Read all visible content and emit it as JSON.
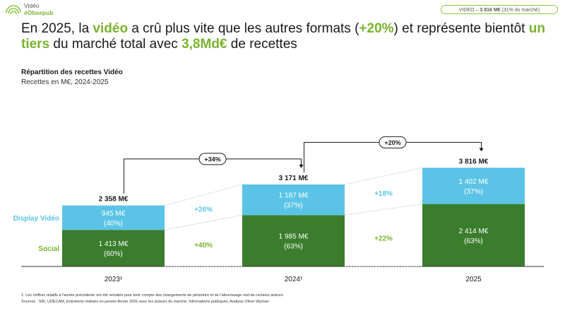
{
  "header": {
    "brand": "Vidéo",
    "hashtag": "#Obsepub",
    "badge_label": "VIDEO –",
    "badge_value": "3 816 M€",
    "badge_note": "(31% du marché)"
  },
  "headline": {
    "p1": "En 2025, la ",
    "h1": "vidéo",
    "p2": " a crû plus vite que les autres formats (",
    "h2": "+20%",
    "p3": ") et représente bientôt ",
    "h3": "un tiers",
    "p4": " du marché total avec ",
    "h4": "3,8Md€",
    "p5": " de recettes"
  },
  "colors": {
    "social": "#3a7d2c",
    "display": "#5bc4e6",
    "accent": "#7ab32e",
    "growth_display": "#5bc4e6",
    "growth_social": "#7ab32e"
  },
  "chart_data": {
    "type": "bar",
    "title": "Répartition des recettes Vidéo",
    "subtitle": "Recettes en M€, 2024-2025",
    "categories": [
      "2023¹",
      "2024¹",
      "2025"
    ],
    "series": [
      {
        "name": "Social",
        "values": [
          1413,
          1985,
          2414
        ],
        "value_labels": [
          "1 413 M€",
          "1 985 M€",
          "2 414 M€"
        ],
        "share_labels": [
          "(60%)",
          "(63%)",
          "(63%)"
        ]
      },
      {
        "name": "Display Vidéo",
        "values": [
          945,
          1187,
          1402
        ],
        "value_labels": [
          "945 M€",
          "1 187 M€",
          "1 402 M€"
        ],
        "share_labels": [
          "(40%)",
          "(37%)",
          "(37%)"
        ]
      }
    ],
    "totals": [
      2358,
      3171,
      3816
    ],
    "total_labels": [
      "2 358 M€",
      "3 171 M€",
      "3 816 M€"
    ],
    "segment_growth": [
      {
        "display": "+26%",
        "social": "+40%"
      },
      {
        "display": "+18%",
        "social": "+22%"
      }
    ],
    "total_growth": [
      "+34%",
      "+20%"
    ],
    "ylim": [
      0,
      4200
    ]
  },
  "footnote": "1. Les chiffres relatifs à l'année précédente ont été retraités pour tenir compte des changements de périmètre et de l'atterrissage réel de certains acteurs",
  "sources": "Sources : SRI, UDECAM, Entretiens réalisés en janvier-février 2026 avec les acteurs du marché, Informations publiques, Analyse Oliver Wyman"
}
